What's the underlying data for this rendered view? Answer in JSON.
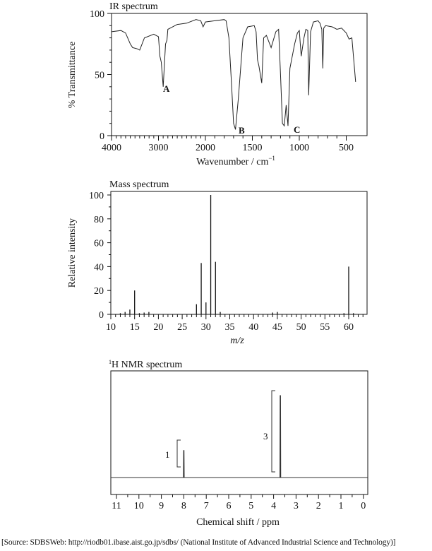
{
  "ir": {
    "title": "IR spectrum",
    "xlabel": "Wavenumber / cm",
    "xlabel_sup": "−1",
    "ylabel": "% Transmittance",
    "yticks": [
      "0",
      "50",
      "100"
    ],
    "xticks": [
      "4000",
      "3000",
      "2000",
      "1500",
      "1000",
      "500"
    ],
    "peak_labels": [
      "A",
      "B",
      "C"
    ]
  },
  "mass": {
    "title": "Mass spectrum",
    "xlabel": "m/z",
    "ylabel": "Relative intensity",
    "yticks": [
      "0",
      "20",
      "40",
      "60",
      "80",
      "100"
    ],
    "xticks": [
      "10",
      "15",
      "20",
      "25",
      "30",
      "35",
      "40",
      "45",
      "50",
      "55",
      "60"
    ]
  },
  "nmr": {
    "title_sup": "1",
    "title": "H NMR spectrum",
    "xlabel": "Chemical shift / ppm",
    "xticks": [
      "11",
      "10",
      "9",
      "8",
      "7",
      "6",
      "5",
      "4",
      "3",
      "2",
      "1",
      "0"
    ],
    "integration_labels": [
      "1",
      "3"
    ]
  },
  "source": "[Source: SDBSWeb: http://riodb01.ibase.aist.go.jp/sdbs/ (National Institute of Advanced Industrial Science and Technology)]",
  "chart_data": [
    {
      "type": "line",
      "title": "IR spectrum",
      "xlabel": "Wavenumber / cm⁻¹",
      "ylabel": "% Transmittance",
      "xlim": [
        4000,
        400
      ],
      "ylim": [
        0,
        100
      ],
      "grid": false,
      "x": [
        4000,
        3800,
        3700,
        3600,
        3550,
        3450,
        3400,
        3300,
        3100,
        3000,
        2970,
        2940,
        2900,
        2850,
        2820,
        2800,
        2750,
        2600,
        2400,
        2200,
        2100,
        2050,
        2000,
        1900,
        1800,
        1780,
        1750,
        1720,
        1700,
        1680,
        1650,
        1600,
        1550,
        1480,
        1460,
        1445,
        1430,
        1400,
        1380,
        1350,
        1300,
        1250,
        1220,
        1200,
        1180,
        1160,
        1140,
        1120,
        1100,
        1050,
        1020,
        1000,
        980,
        950,
        930,
        910,
        900,
        880,
        850,
        800,
        780,
        760,
        750,
        740,
        720,
        650,
        600,
        550,
        500,
        470,
        440,
        400
      ],
      "y": [
        85,
        86,
        84,
        75,
        72,
        71,
        70,
        80,
        83,
        81,
        65,
        60,
        40,
        75,
        78,
        87,
        88,
        91,
        92,
        95,
        94,
        89,
        93,
        94,
        95,
        94,
        80,
        40,
        10,
        5,
        30,
        80,
        89,
        90,
        85,
        62,
        57,
        43,
        80,
        82,
        72,
        85,
        87,
        50,
        10,
        8,
        25,
        8,
        55,
        75,
        84,
        86,
        65,
        80,
        87,
        86,
        33,
        85,
        93,
        94,
        92,
        87,
        55,
        88,
        90,
        89,
        87,
        88,
        84,
        79,
        80,
        44
      ]
    },
    {
      "type": "bar",
      "title": "Mass spectrum",
      "xlabel": "m/z",
      "ylabel": "Relative intensity",
      "xlim": [
        10,
        63.5
      ],
      "ylim": [
        0,
        100
      ],
      "grid": false,
      "categories": [
        12,
        13,
        14,
        15,
        16,
        17,
        18,
        28,
        29,
        30,
        31,
        32,
        33,
        44,
        45,
        59,
        60,
        61
      ],
      "values": [
        1,
        2,
        4,
        20,
        1,
        1.5,
        2,
        8.5,
        43,
        10,
        100,
        44,
        2,
        1.5,
        2,
        1,
        40,
        1
      ]
    },
    {
      "type": "line",
      "title": "¹H NMR spectrum",
      "xlabel": "Chemical shift / ppm",
      "xlim": [
        11,
        0
      ],
      "grid": false,
      "peaks": [
        {
          "shift_ppm": 8.0,
          "relative_height": 0.33,
          "integration": 1
        },
        {
          "shift_ppm": 3.7,
          "relative_height": 1.0,
          "integration": 3
        }
      ]
    }
  ]
}
